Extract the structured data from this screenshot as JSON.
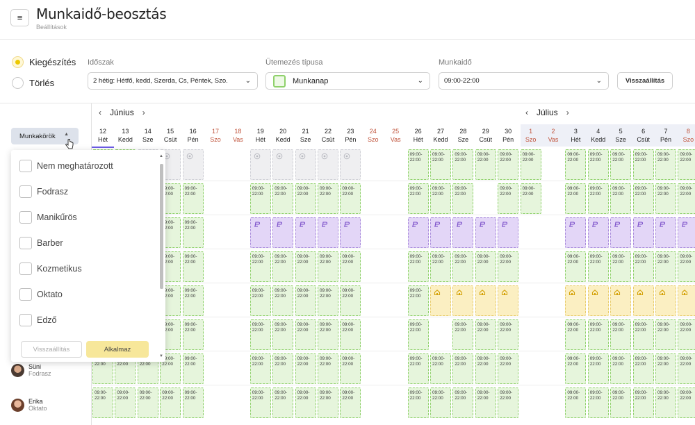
{
  "header": {
    "title": "Munkaidő-beosztás",
    "breadcrumb": "Beállítások",
    "menu_icon": "hamburger-icon"
  },
  "filters": {
    "mode_options": [
      {
        "label": "Kiegészítés",
        "selected": true
      },
      {
        "label": "Törlés",
        "selected": false
      }
    ],
    "period": {
      "label": "Időszak",
      "value": "2 hétig: Hétfő, kedd, Szerda, Cs, Péntek, Szo."
    },
    "schedule_type": {
      "label": "Ütemezés típusa",
      "value": "Munkanap",
      "swatch_color": "#8fd16b"
    },
    "work_time": {
      "label": "Munkaidő",
      "value": "09:00-22:00"
    },
    "reset_label": "Visszaállítás"
  },
  "roles_button": {
    "label": "Munkakörök"
  },
  "calendar": {
    "months": [
      {
        "name": "Június",
        "prev": "‹",
        "next": "›"
      },
      {
        "name": "Július",
        "prev": "‹",
        "next": "›"
      }
    ],
    "days": [
      {
        "num": "12",
        "dow": "Hét",
        "weekend": false
      },
      {
        "num": "13",
        "dow": "Kedd",
        "weekend": false
      },
      {
        "num": "14",
        "dow": "Sze",
        "weekend": false
      },
      {
        "num": "15",
        "dow": "Csüt",
        "weekend": false
      },
      {
        "num": "16",
        "dow": "Pén",
        "weekend": false
      },
      {
        "num": "17",
        "dow": "Szo",
        "weekend": true
      },
      {
        "num": "18",
        "dow": "Vas",
        "weekend": true
      },
      {
        "num": "19",
        "dow": "Hét",
        "weekend": false
      },
      {
        "num": "20",
        "dow": "Kedd",
        "weekend": false
      },
      {
        "num": "21",
        "dow": "Sze",
        "weekend": false
      },
      {
        "num": "22",
        "dow": "Csüt",
        "weekend": false
      },
      {
        "num": "23",
        "dow": "Pén",
        "weekend": false
      },
      {
        "num": "24",
        "dow": "Szo",
        "weekend": true
      },
      {
        "num": "25",
        "dow": "Vas",
        "weekend": true
      },
      {
        "num": "26",
        "dow": "Hét",
        "weekend": false
      },
      {
        "num": "27",
        "dow": "Kedd",
        "weekend": false
      },
      {
        "num": "28",
        "dow": "Sze",
        "weekend": false
      },
      {
        "num": "29",
        "dow": "Csüt",
        "weekend": false
      },
      {
        "num": "30",
        "dow": "Pén",
        "weekend": false
      },
      {
        "num": "1",
        "dow": "Szo",
        "weekend": true
      },
      {
        "num": "2",
        "dow": "Vas",
        "weekend": true
      },
      {
        "num": "3",
        "dow": "Hét",
        "weekend": false
      },
      {
        "num": "4",
        "dow": "Kedd",
        "weekend": false
      },
      {
        "num": "5",
        "dow": "Sze",
        "weekend": false
      },
      {
        "num": "6",
        "dow": "Csüt",
        "weekend": false
      },
      {
        "num": "7",
        "dow": "Pén",
        "weekend": false
      },
      {
        "num": "8",
        "dow": "Szo",
        "weekend": true
      }
    ],
    "shift_text": "09:00-\n22:00",
    "legend_colors": {
      "G": "#e6f5dc",
      "P": "#e3d6f7",
      "Y": "#fbefc2",
      "X": "#efeff1"
    },
    "rows": [
      "GGXXX..XXXXX..GGGGGG.GGGGGG",
      "GGGGG..GGGGG..GGG.GG.GGGGGG",
      "GGGGG..PPPPP..PPPPP..PPPPPP",
      "GGGGG..GGGGG..GGGGG..GGGGGG",
      "GGGGG..GGGGG..GYYYY..YYYYYY",
      "GGGGG..GGGGG..G.GGG..GGGGGG",
      "GGGGG..GGGGG..GGGGG..GGGGGG",
      "GGGGG..GGGGG..GGGGG..GGGGGG"
    ]
  },
  "employees": [
    {
      "name": "Süni",
      "role": "Fodrasz"
    },
    {
      "name": "Erika",
      "role": "Oktato"
    }
  ],
  "roles_dropdown": {
    "items": [
      {
        "label": "Nem meghatározott",
        "checked": false
      },
      {
        "label": "Fodrasz",
        "checked": false
      },
      {
        "label": "Manikűrös",
        "checked": false
      },
      {
        "label": "Barber",
        "checked": false
      },
      {
        "label": "Kozmetikus",
        "checked": false
      },
      {
        "label": "Oktato",
        "checked": false
      },
      {
        "label": "Edző",
        "checked": false
      }
    ],
    "reset_label": "Visszaállítás",
    "apply_label": "Alkalmaz"
  }
}
